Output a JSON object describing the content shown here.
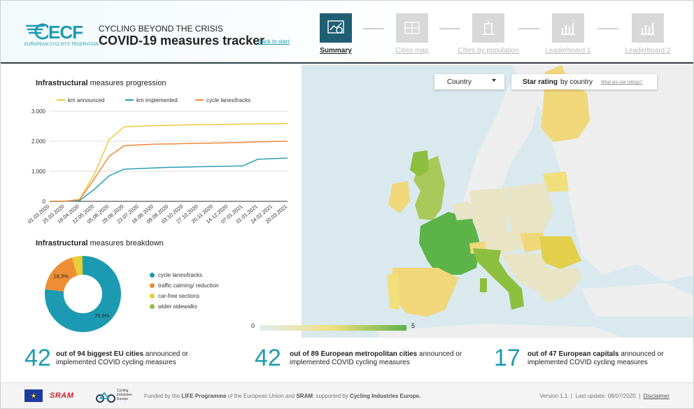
{
  "header": {
    "logo_text": "ECF",
    "logo_subtext": "EUROPEAN CYCLISTS' FEDERATION",
    "kicker": "CYCLING BEYOND THE CRISIS",
    "title": "COVID-19 measures tracker",
    "back_link": "Back to start"
  },
  "nav": [
    {
      "label": "Summary",
      "icon": "summary-icon",
      "active": true
    },
    {
      "label": "Cities map",
      "icon": "city-map-icon",
      "active": false
    },
    {
      "label": "Cities by population",
      "icon": "city-building-icon",
      "active": false
    },
    {
      "label": "Leaderboard 1",
      "icon": "bar-chart-icon",
      "active": false
    },
    {
      "label": "Leaderboard 2",
      "icon": "bar-chart-icon",
      "active": false
    }
  ],
  "line_chart": {
    "title_bold": "Infrastructural",
    "title_rest": " measures progression"
  },
  "pie_chart": {
    "title_bold": "Infrastructural",
    "title_rest": " measures breakdown"
  },
  "chart_data": [
    {
      "type": "line",
      "title": "Infrastructural measures progression",
      "x": [
        "01.03.2020",
        "25.03.2020",
        "18.04.2020",
        "12.05.2020",
        "05.06.2020",
        "29.06.2020",
        "23.07.2020",
        "16.08.2020",
        "09.09.2020",
        "03.10.2020",
        "27.10.2020",
        "20.11.2020",
        "14.12.2020",
        "07.01.2021",
        "31.01.2021",
        "24.02.2021",
        "20.03.2021"
      ],
      "ylim": [
        0,
        3000
      ],
      "yticks": [
        "0",
        "1.000",
        "2.000",
        "3.000"
      ],
      "grid": true,
      "legend_position": "top",
      "series": [
        {
          "name": "km announced",
          "color": "#f0c93a",
          "values": [
            0,
            5,
            60,
            900,
            2050,
            2480,
            2500,
            2520,
            2530,
            2540,
            2550,
            2550,
            2560,
            2570,
            2580,
            2580,
            2590
          ]
        },
        {
          "name": "km implemented",
          "color": "#2a9fb6",
          "values": [
            0,
            0,
            20,
            400,
            850,
            1070,
            1090,
            1110,
            1130,
            1140,
            1150,
            1160,
            1170,
            1180,
            1400,
            1420,
            1440
          ]
        },
        {
          "name": "cycle lanes/tracks",
          "color": "#ee8a3a",
          "values": [
            0,
            5,
            50,
            750,
            1500,
            1850,
            1880,
            1900,
            1910,
            1920,
            1930,
            1940,
            1950,
            1960,
            1980,
            1990,
            2000
          ]
        }
      ]
    },
    {
      "type": "pie",
      "title": "Infrastructural measures breakdown",
      "donut": true,
      "legend_position": "right",
      "slices": [
        {
          "name": "cycle lanes/tracks",
          "value": 76.9,
          "label": "76,9%",
          "color": "#1c9ab1"
        },
        {
          "name": "traffic calming/ reduction",
          "value": 18.3,
          "label": "18,3%",
          "color": "#ef8e35"
        },
        {
          "name": "car-free sections",
          "value": 4.1,
          "label": "",
          "color": "#e7cf3a"
        },
        {
          "name": "wider sidewalks",
          "value": 0.7,
          "label": "",
          "color": "#8dbf3f"
        }
      ]
    }
  ],
  "map": {
    "country_select": "Country",
    "star_bold": "Star rating",
    "star_rest": " by country",
    "star_link": "What are star ratings?",
    "scale_min": "0",
    "scale_max": "5",
    "colors": {
      "high": "#5cb348",
      "mid": "#a9c85a",
      "low": "#f0df7a",
      "faint": "#e8e4c4",
      "none": "#eeeeee",
      "sea": "#d9e9ee"
    }
  },
  "stats": [
    {
      "number": "42",
      "bold": "out of 94 biggest EU cities",
      "rest": " announced or implemented COVID cycling measures"
    },
    {
      "number": "42",
      "bold": "out of 89 European metropolitan cities",
      "rest": " announced or implemented COVID cycling measures"
    },
    {
      "number": "17",
      "bold": "out of 47 European capitals",
      "rest": " announced or implemented COVID cycling measures"
    }
  ],
  "footer": {
    "sram": "SRAM",
    "cie_text": "Cycling Industries Europe",
    "funding_pre": "Funded by the ",
    "funding_life": "LIFE Programme",
    "funding_mid": " of the European Union and ",
    "funding_sram": "SRAM",
    "funding_post": "; supported by ",
    "funding_cie": "Cycling Industries Europe.",
    "version": "Version 1.1",
    "last_update": "Last update: 08/07/2020",
    "disclaimer": "Disclaimer"
  }
}
